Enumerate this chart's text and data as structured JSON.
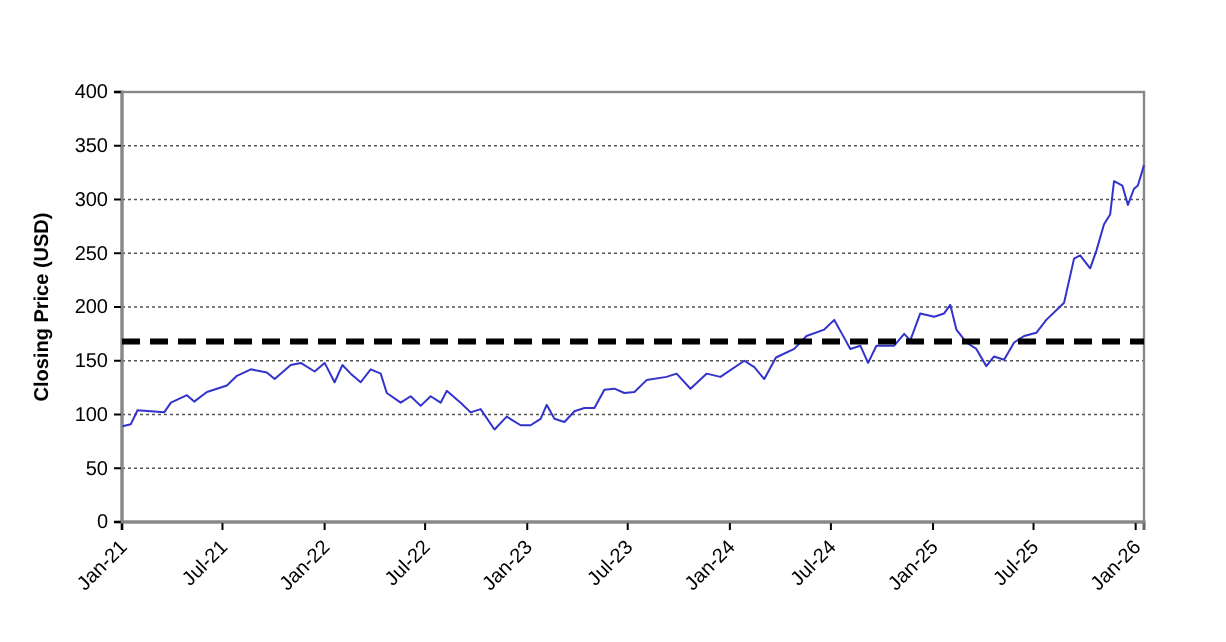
{
  "chart_data": {
    "type": "line",
    "ylabel": "Closing Price (USD)",
    "xlim": [
      "2021-01-01",
      "2026-01-16"
    ],
    "xticks": [
      {
        "value": "2021-01-01",
        "label": "Jan-21"
      },
      {
        "value": "2021-07-01",
        "label": "Jul-21"
      },
      {
        "value": "2022-01-01",
        "label": "Jan-22"
      },
      {
        "value": "2022-07-01",
        "label": "Jul-22"
      },
      {
        "value": "2023-01-01",
        "label": "Jan-23"
      },
      {
        "value": "2023-07-01",
        "label": "Jul-23"
      },
      {
        "value": "2024-01-01",
        "label": "Jan-24"
      },
      {
        "value": "2024-07-01",
        "label": "Jul-24"
      },
      {
        "value": "2025-01-01",
        "label": "Jan-25"
      },
      {
        "value": "2025-07-01",
        "label": "Jul-25"
      },
      {
        "value": "2026-01-01",
        "label": "Jan-26"
      }
    ],
    "ylim": [
      0,
      400
    ],
    "yticks": [
      0,
      50,
      100,
      150,
      200,
      250,
      300,
      350,
      400
    ],
    "grid": "y",
    "ref_lines": [
      {
        "axis": "y",
        "value": 168,
        "color": "#000000",
        "line_style": "dashed"
      }
    ],
    "series": [
      {
        "color": "#3333cc",
        "x": [
          "2021-01-02",
          "2021-01-17",
          "2021-01-29",
          "2021-02-22",
          "2021-03-18",
          "2021-03-30",
          "2021-04-28",
          "2021-05-11",
          "2021-06-03",
          "2021-07-09",
          "2021-07-27",
          "2021-08-21",
          "2021-09-19",
          "2021-10-03",
          "2021-11-01",
          "2021-11-19",
          "2021-12-14",
          "2022-01-01",
          "2022-01-19",
          "2022-02-02",
          "2022-02-17",
          "2022-03-07",
          "2022-03-25",
          "2022-04-12",
          "2022-04-23",
          "2022-05-18",
          "2022-06-05",
          "2022-06-23",
          "2022-07-11",
          "2022-07-29",
          "2022-08-09",
          "2022-09-03",
          "2022-09-21",
          "2022-10-09",
          "2022-11-03",
          "2022-11-25",
          "2022-12-20",
          "2023-01-07",
          "2023-01-25",
          "2023-02-05",
          "2023-02-19",
          "2023-03-09",
          "2023-03-27",
          "2023-04-14",
          "2023-05-02",
          "2023-05-20",
          "2023-06-07",
          "2023-06-25",
          "2023-07-13",
          "2023-08-04",
          "2023-09-09",
          "2023-09-27",
          "2023-10-22",
          "2023-11-20",
          "2023-12-15",
          "2024-01-27",
          "2024-02-14",
          "2024-03-03",
          "2024-03-24",
          "2024-04-26",
          "2024-05-18",
          "2024-06-19",
          "2024-07-07",
          "2024-07-21",
          "2024-08-05",
          "2024-08-23",
          "2024-09-06",
          "2024-09-21",
          "2024-10-23",
          "2024-11-10",
          "2024-11-21",
          "2024-12-09",
          "2025-01-03",
          "2025-01-21",
          "2025-02-01",
          "2025-02-12",
          "2025-03-02",
          "2025-03-20",
          "2025-04-07",
          "2025-04-21",
          "2025-05-09",
          "2025-05-27",
          "2025-06-14",
          "2025-07-06",
          "2025-07-24",
          "2025-08-11",
          "2025-08-25",
          "2025-09-12",
          "2025-09-23",
          "2025-10-11",
          "2025-10-22",
          "2025-11-05",
          "2025-11-16",
          "2025-11-23",
          "2025-12-08",
          "2025-12-18",
          "2025-12-29",
          "2026-01-05",
          "2026-01-16"
        ],
        "values": [
          89,
          91,
          104,
          103,
          102,
          111,
          118,
          112,
          121,
          127,
          136,
          142,
          139,
          133,
          146,
          148,
          140,
          148,
          130,
          146,
          138,
          130,
          142,
          138,
          120,
          111,
          117,
          108,
          117,
          111,
          122,
          111,
          102,
          105,
          86,
          98,
          90,
          90,
          96,
          109,
          96,
          93,
          103,
          106,
          106,
          123,
          124,
          120,
          121,
          132,
          135,
          138,
          124,
          138,
          135,
          150,
          144,
          133,
          153,
          161,
          173,
          179,
          188,
          175,
          161,
          164,
          148,
          164,
          164,
          175,
          169,
          194,
          191,
          194,
          202,
          179,
          167,
          161,
          145,
          154,
          151,
          167,
          173,
          176,
          188,
          197,
          204,
          245,
          248,
          236,
          252,
          277,
          286,
          317,
          313,
          295,
          310,
          313,
          332
        ]
      }
    ]
  }
}
